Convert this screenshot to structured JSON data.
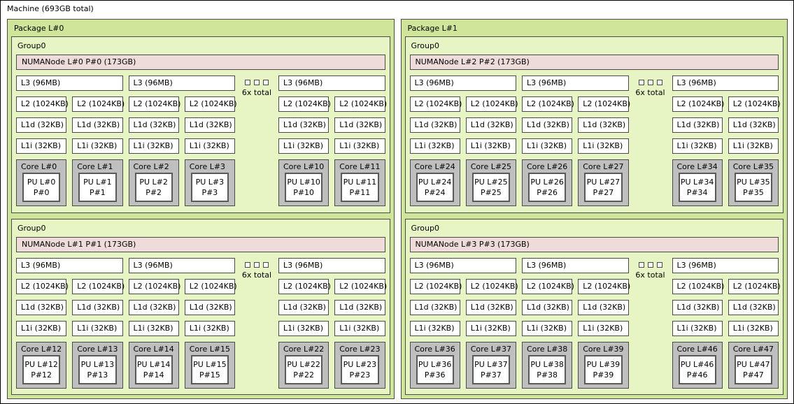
{
  "machine": {
    "label": "Machine (693GB total)"
  },
  "labels": {
    "l3": "L3 (96MB)",
    "l2": "L2 (1024KB)",
    "l1d": "L1d (32KB)",
    "l1i": "L1i (32KB)"
  },
  "colors": {
    "machine_bg": "#ffffff",
    "package_bg": "#cfe69a",
    "group_bg": "#e7f5c4",
    "numanode_bg": "#eedcda",
    "core_bg": "#bfbfbf",
    "cache_bg": "#ffffff",
    "border": "#4a4a4a"
  },
  "packages": [
    {
      "label": "Package L#0",
      "groups": [
        {
          "label": "Group0",
          "numanode": "NUMANode L#0 P#0 (173GB)",
          "collapse": "6x total",
          "columns": [
            {
              "cores": [
                {
                  "label": "Core L#0",
                  "pu_line1": "PU L#0",
                  "pu_line2": "P#0"
                },
                {
                  "label": "Core L#1",
                  "pu_line1": "PU L#1",
                  "pu_line2": "P#1"
                }
              ]
            },
            {
              "cores": [
                {
                  "label": "Core L#2",
                  "pu_line1": "PU L#2",
                  "pu_line2": "P#2"
                },
                {
                  "label": "Core L#3",
                  "pu_line1": "PU L#3",
                  "pu_line2": "P#3"
                }
              ]
            },
            {
              "cores": [
                {
                  "label": "Core L#10",
                  "pu_line1": "PU L#10",
                  "pu_line2": "P#10"
                },
                {
                  "label": "Core L#11",
                  "pu_line1": "PU L#11",
                  "pu_line2": "P#11"
                }
              ]
            }
          ]
        },
        {
          "label": "Group0",
          "numanode": "NUMANode L#1 P#1 (173GB)",
          "collapse": "6x total",
          "columns": [
            {
              "cores": [
                {
                  "label": "Core L#12",
                  "pu_line1": "PU L#12",
                  "pu_line2": "P#12"
                },
                {
                  "label": "Core L#13",
                  "pu_line1": "PU L#13",
                  "pu_line2": "P#13"
                }
              ]
            },
            {
              "cores": [
                {
                  "label": "Core L#14",
                  "pu_line1": "PU L#14",
                  "pu_line2": "P#14"
                },
                {
                  "label": "Core L#15",
                  "pu_line1": "PU L#15",
                  "pu_line2": "P#15"
                }
              ]
            },
            {
              "cores": [
                {
                  "label": "Core L#22",
                  "pu_line1": "PU L#22",
                  "pu_line2": "P#22"
                },
                {
                  "label": "Core L#23",
                  "pu_line1": "PU L#23",
                  "pu_line2": "P#23"
                }
              ]
            }
          ]
        }
      ]
    },
    {
      "label": "Package L#1",
      "groups": [
        {
          "label": "Group0",
          "numanode": "NUMANode L#2 P#2 (173GB)",
          "collapse": "6x total",
          "columns": [
            {
              "cores": [
                {
                  "label": "Core L#24",
                  "pu_line1": "PU L#24",
                  "pu_line2": "P#24"
                },
                {
                  "label": "Core L#25",
                  "pu_line1": "PU L#25",
                  "pu_line2": "P#25"
                }
              ]
            },
            {
              "cores": [
                {
                  "label": "Core L#26",
                  "pu_line1": "PU L#26",
                  "pu_line2": "P#26"
                },
                {
                  "label": "Core L#27",
                  "pu_line1": "PU L#27",
                  "pu_line2": "P#27"
                }
              ]
            },
            {
              "cores": [
                {
                  "label": "Core L#34",
                  "pu_line1": "PU L#34",
                  "pu_line2": "P#34"
                },
                {
                  "label": "Core L#35",
                  "pu_line1": "PU L#35",
                  "pu_line2": "P#35"
                }
              ]
            }
          ]
        },
        {
          "label": "Group0",
          "numanode": "NUMANode L#3 P#3 (173GB)",
          "collapse": "6x total",
          "columns": [
            {
              "cores": [
                {
                  "label": "Core L#36",
                  "pu_line1": "PU L#36",
                  "pu_line2": "P#36"
                },
                {
                  "label": "Core L#37",
                  "pu_line1": "PU L#37",
                  "pu_line2": "P#37"
                }
              ]
            },
            {
              "cores": [
                {
                  "label": "Core L#38",
                  "pu_line1": "PU L#38",
                  "pu_line2": "P#38"
                },
                {
                  "label": "Core L#39",
                  "pu_line1": "PU L#39",
                  "pu_line2": "P#39"
                }
              ]
            },
            {
              "cores": [
                {
                  "label": "Core L#46",
                  "pu_line1": "PU L#46",
                  "pu_line2": "P#46"
                },
                {
                  "label": "Core L#47",
                  "pu_line1": "PU L#47",
                  "pu_line2": "P#47"
                }
              ]
            }
          ]
        }
      ]
    }
  ]
}
